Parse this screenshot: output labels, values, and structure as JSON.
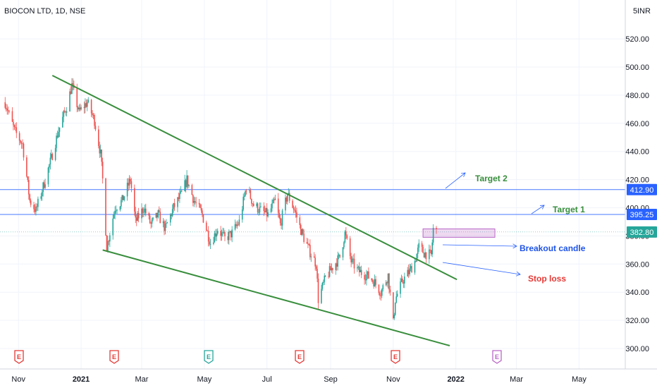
{
  "chart_data": {
    "type": "candlestick",
    "title": "BIOCON LTD, 1D, NSE",
    "currency": "INR",
    "y_axis_top_label": "5",
    "ylim": [
      290,
      545
    ],
    "y_ticks": [
      300,
      320,
      340,
      360,
      380,
      400,
      420,
      440,
      460,
      480,
      500,
      520
    ],
    "x_ticks": [
      "Nov",
      "2021",
      "Mar",
      "May",
      "Jul",
      "Sep",
      "Nov",
      "2022",
      "Mar",
      "May"
    ],
    "price_levels": [
      {
        "name": "target-2-level",
        "value": 412.9,
        "label": "412.90",
        "color": "#2962ff"
      },
      {
        "name": "target-1-level",
        "value": 395.25,
        "label": "395.25",
        "color": "#2962ff"
      },
      {
        "name": "current-price",
        "value": 382.8,
        "label": "382.80",
        "color": "#26a69a"
      }
    ],
    "trendlines": [
      {
        "name": "upper-trendline",
        "from": [
          "2020-12-04",
          494
        ],
        "to": [
          "2022-01-02",
          349
        ],
        "color": "#388e3c"
      },
      {
        "name": "lower-trendline",
        "from": [
          "2021-01-22",
          370
        ],
        "to": [
          "2021-12-26",
          302
        ],
        "color": "#388e3c"
      }
    ],
    "annotations": [
      {
        "name": "target-2-label",
        "text": "Target 2",
        "color": "#388e3c"
      },
      {
        "name": "target-1-label",
        "text": "Target 1",
        "color": "#388e3c"
      },
      {
        "name": "breakout-candle-label",
        "text": "Breakout candle",
        "color": "#1e53e5"
      },
      {
        "name": "stop-loss-label",
        "text": "Stop loss",
        "color": "#e53935"
      }
    ],
    "breakout_zone": {
      "from": "2021-11-30",
      "to": "2022-02-08",
      "low": 379,
      "high": 385
    },
    "earnings_markers": [
      {
        "label": "E",
        "color": "#e53935"
      },
      {
        "label": "E",
        "color": "#e53935"
      },
      {
        "label": "E",
        "color": "#26a69a"
      },
      {
        "label": "E",
        "color": "#e53935"
      },
      {
        "label": "E",
        "color": "#e53935"
      },
      {
        "label": "E",
        "color": "#ba68c8"
      }
    ],
    "price_path": [
      [
        "2020-10-19",
        475
      ],
      [
        "2020-10-28",
        455
      ],
      [
        "2020-11-05",
        445
      ],
      [
        "2020-11-12",
        405
      ],
      [
        "2020-11-18",
        398
      ],
      [
        "2020-11-25",
        415
      ],
      [
        "2020-12-03",
        435
      ],
      [
        "2020-12-10",
        455
      ],
      [
        "2020-12-18",
        472
      ],
      [
        "2020-12-23",
        487
      ],
      [
        "2020-12-30",
        468
      ],
      [
        "2021-01-07",
        475
      ],
      [
        "2021-01-14",
        462
      ],
      [
        "2021-01-20",
        438
      ],
      [
        "2021-01-22",
        420
      ],
      [
        "2021-01-26",
        372
      ],
      [
        "2021-02-03",
        400
      ],
      [
        "2021-02-10",
        405
      ],
      [
        "2021-02-18",
        420
      ],
      [
        "2021-02-23",
        390
      ],
      [
        "2021-03-03",
        400
      ],
      [
        "2021-03-10",
        388
      ],
      [
        "2021-03-17",
        395
      ],
      [
        "2021-03-24",
        385
      ],
      [
        "2021-04-01",
        400
      ],
      [
        "2021-04-09",
        410
      ],
      [
        "2021-04-14",
        420
      ],
      [
        "2021-04-21",
        405
      ],
      [
        "2021-04-29",
        395
      ],
      [
        "2021-05-07",
        375
      ],
      [
        "2021-05-14",
        385
      ],
      [
        "2021-05-21",
        378
      ],
      [
        "2021-05-28",
        382
      ],
      [
        "2021-06-04",
        390
      ],
      [
        "2021-06-11",
        415
      ],
      [
        "2021-06-18",
        402
      ],
      [
        "2021-06-25",
        398
      ],
      [
        "2021-07-02",
        395
      ],
      [
        "2021-07-09",
        405
      ],
      [
        "2021-07-14",
        388
      ],
      [
        "2021-07-21",
        410
      ],
      [
        "2021-07-28",
        398
      ],
      [
        "2021-08-04",
        382
      ],
      [
        "2021-08-11",
        370
      ],
      [
        "2021-08-18",
        360
      ],
      [
        "2021-08-20",
        335
      ],
      [
        "2021-08-27",
        350
      ],
      [
        "2021-09-03",
        358
      ],
      [
        "2021-09-10",
        365
      ],
      [
        "2021-09-15",
        382
      ],
      [
        "2021-09-21",
        362
      ],
      [
        "2021-09-28",
        355
      ],
      [
        "2021-10-06",
        352
      ],
      [
        "2021-10-13",
        348
      ],
      [
        "2021-10-20",
        340
      ],
      [
        "2021-10-27",
        352
      ],
      [
        "2021-11-01",
        318
      ],
      [
        "2021-11-03",
        335
      ],
      [
        "2021-11-10",
        348
      ],
      [
        "2021-11-17",
        355
      ],
      [
        "2021-11-22",
        362
      ],
      [
        "2021-11-26",
        372
      ],
      [
        "2021-12-01",
        368
      ],
      [
        "2021-12-08",
        366
      ],
      [
        "2021-12-10",
        385
      ],
      [
        "2021-12-13",
        383
      ]
    ]
  }
}
